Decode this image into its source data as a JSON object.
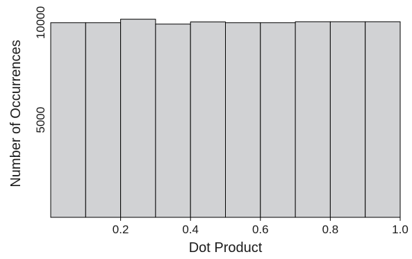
{
  "chart_data": {
    "type": "bar",
    "subtype": "histogram",
    "title": "",
    "xlabel": "Dot Product",
    "ylabel": "Number of Occurrences",
    "bin_edges": [
      0.0,
      0.1,
      0.2,
      0.3,
      0.4,
      0.5,
      0.6,
      0.7,
      0.8,
      0.9,
      1.0
    ],
    "values": [
      9990,
      9990,
      10170,
      9920,
      10030,
      9990,
      9990,
      10040,
      10040,
      10040
    ],
    "xlim": [
      0.0,
      1.0
    ],
    "ylim": [
      0,
      10800
    ],
    "xticks": [
      0.2,
      0.4,
      0.6,
      0.8,
      1.0
    ],
    "xtick_labels": [
      "0.2",
      "0.4",
      "0.6",
      "0.8",
      "1.0"
    ],
    "yticks": [
      5000,
      10000
    ],
    "ytick_labels": [
      "5000",
      "10000"
    ],
    "grid": false,
    "legend": "none",
    "colors": {
      "bar_fill": "#d1d2d4",
      "bar_edge": "#000000",
      "axis": "#000000",
      "text": "#1a1a1a"
    }
  }
}
